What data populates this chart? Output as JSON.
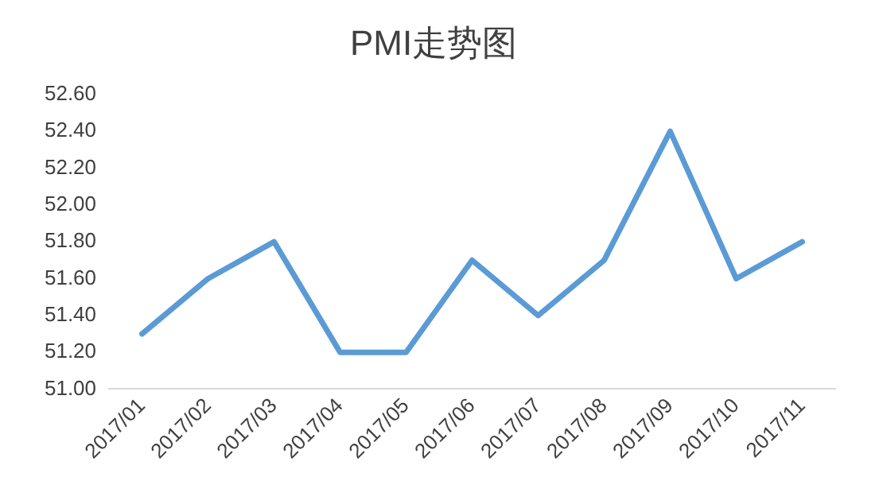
{
  "chart_data": {
    "type": "line",
    "title": "PMI走势图",
    "categories": [
      "2017/01",
      "2017/02",
      "2017/03",
      "2017/04",
      "2017/05",
      "2017/06",
      "2017/07",
      "2017/08",
      "2017/09",
      "2017/10",
      "2017/11"
    ],
    "series": [
      {
        "color": "#5b9bd5",
        "values": [
          51.3,
          51.6,
          51.8,
          51.2,
          51.2,
          51.7,
          51.4,
          51.7,
          52.4,
          51.6,
          51.8
        ]
      }
    ],
    "ylim": [
      51.0,
      52.6
    ],
    "yticks": [
      {
        "value": 51.0,
        "label": "51.00"
      },
      {
        "value": 51.2,
        "label": "51.20"
      },
      {
        "value": 51.4,
        "label": "51.40"
      },
      {
        "value": 51.6,
        "label": "51.60"
      },
      {
        "value": 51.8,
        "label": "51.80"
      },
      {
        "value": 52.0,
        "label": "52.00"
      },
      {
        "value": 52.2,
        "label": "52.20"
      },
      {
        "value": 52.4,
        "label": "52.40"
      },
      {
        "value": 52.6,
        "label": "52.60"
      }
    ],
    "grid": false,
    "legend": false,
    "marker": "none",
    "line_style": "solid"
  }
}
